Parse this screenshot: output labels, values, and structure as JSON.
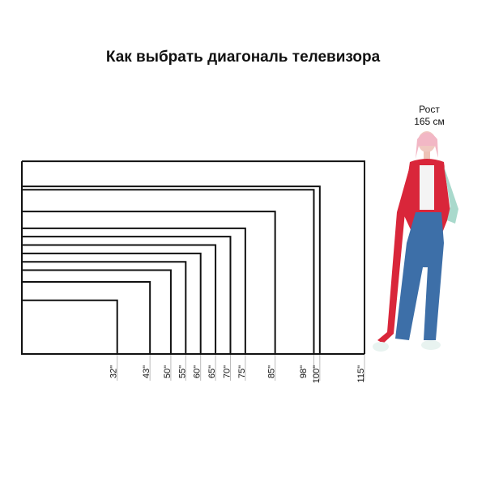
{
  "title": "Как выбрать диагональ телевизора",
  "person": {
    "label_line1": "Рост",
    "label_line2": "165 см",
    "jacket_color": "#d9263a",
    "jeans_color": "#3d6fa8"
  },
  "tv_sizes": [
    {
      "label": "32\"",
      "diagonal": 32
    },
    {
      "label": "43\"",
      "diagonal": 43
    },
    {
      "label": "50\"",
      "diagonal": 50
    },
    {
      "label": "55\"",
      "diagonal": 55
    },
    {
      "label": "60\"",
      "diagonal": 60
    },
    {
      "label": "65\"",
      "diagonal": 65
    },
    {
      "label": "70\"",
      "diagonal": 70
    },
    {
      "label": "75\"",
      "diagonal": 75
    },
    {
      "label": "85\"",
      "diagonal": 85
    },
    {
      "label": "98\"",
      "diagonal": 98
    },
    {
      "label": "100\"",
      "diagonal": 100
    },
    {
      "label": "115\"",
      "diagonal": 115
    }
  ],
  "aspect_ratio": "16:9"
}
